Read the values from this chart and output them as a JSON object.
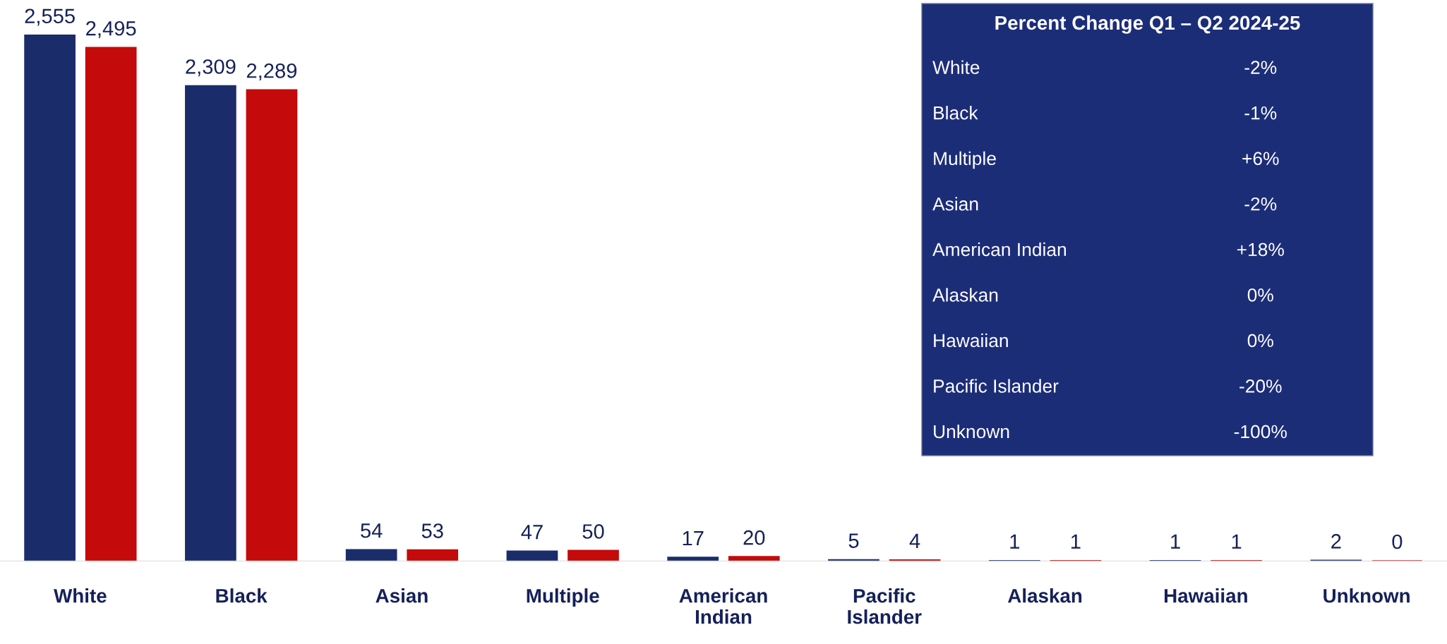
{
  "chart_data": [
    {
      "type": "bar",
      "categories": [
        "White",
        "Black",
        "Asian",
        "Multiple",
        "American\nIndian",
        "Pacific\nIslander",
        "Alaskan",
        "Hawaiian",
        "Unknown"
      ],
      "series": [
        {
          "color": "#1b2c6b",
          "values": [
            2555,
            2309,
            54,
            47,
            17,
            5,
            1,
            1,
            2
          ],
          "value_labels": [
            "2,555",
            "2,309",
            "54",
            "47",
            "17",
            "5",
            "1",
            "1",
            "2"
          ]
        },
        {
          "color": "#c40a0a",
          "values": [
            2495,
            2289,
            53,
            50,
            20,
            4,
            1,
            1,
            0
          ],
          "value_labels": [
            "2,495",
            "2,289",
            "53",
            "50",
            "20",
            "4",
            "1",
            "1",
            "0"
          ]
        }
      ]
    },
    {
      "type": "other",
      "title": "Percent Change Q1 – Q2 2024-25",
      "categories": [
        "White",
        "Black",
        "Multiple",
        "Asian",
        "American Indian",
        "Alaskan",
        "Hawaiian",
        "Pacific Islander",
        "Unknown"
      ],
      "value_labels": [
        "-2%",
        "-1%",
        "+6%",
        "-2%",
        "+18%",
        "0%",
        "0%",
        "-20%",
        "-100%"
      ]
    }
  ]
}
